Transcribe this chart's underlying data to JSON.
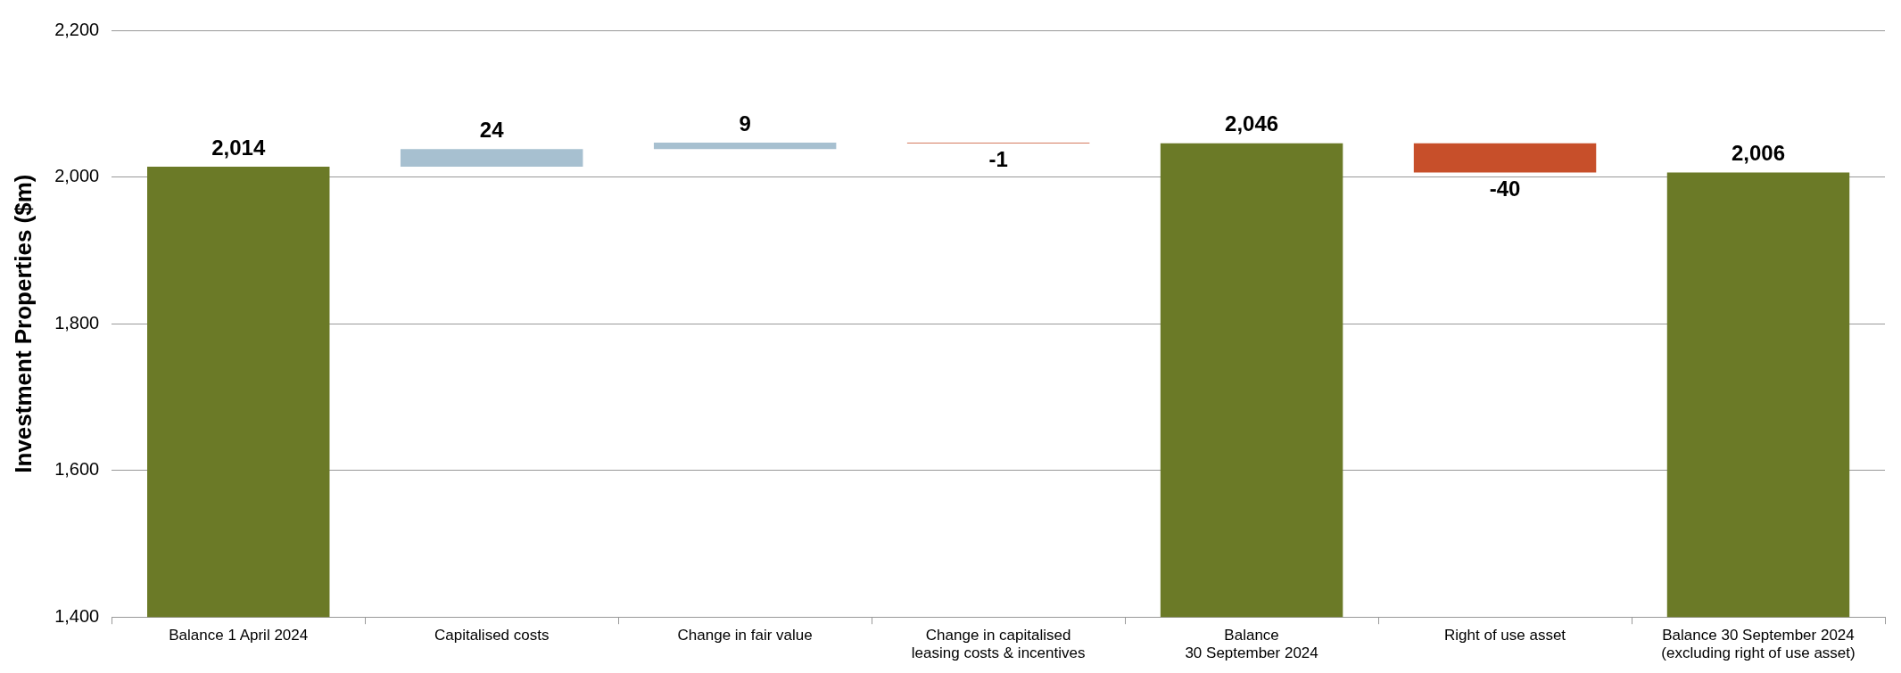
{
  "chart_data": {
    "type": "bar",
    "ylabel": "Investment Properties ($m)",
    "categories": [
      "Balance 1 April 2024",
      "Capitalised costs",
      "Change in fair value",
      "Change in capitalised\nleasing costs & incentives",
      "Balance\n30 September 2024",
      "Right of use asset",
      "Balance 30 September 2024\n(excluding right of use asset)"
    ],
    "values": [
      2014,
      24,
      9,
      -1,
      2046,
      -40,
      2006
    ],
    "base": [
      null,
      2014,
      2038,
      2047,
      null,
      2046,
      null
    ],
    "colors": [
      "#6b7a27",
      "#a7c0d0",
      "#a7c0d0",
      "#c74f2a",
      "#6b7a27",
      "#c74f2a",
      "#6b7a27"
    ],
    "value_labels": [
      "2,014",
      "24",
      "9",
      "-1",
      "2,046",
      "-40",
      "2,006"
    ],
    "ylim": [
      1400,
      2200
    ],
    "yticks": [
      {
        "value": 1400,
        "label": "1,400"
      },
      {
        "value": 1600,
        "label": "1,600"
      },
      {
        "value": 1800,
        "label": "1,800"
      },
      {
        "value": 2000,
        "label": "2,000"
      },
      {
        "value": 2200,
        "label": "2,200"
      }
    ],
    "grid": "y",
    "legend": false
  }
}
